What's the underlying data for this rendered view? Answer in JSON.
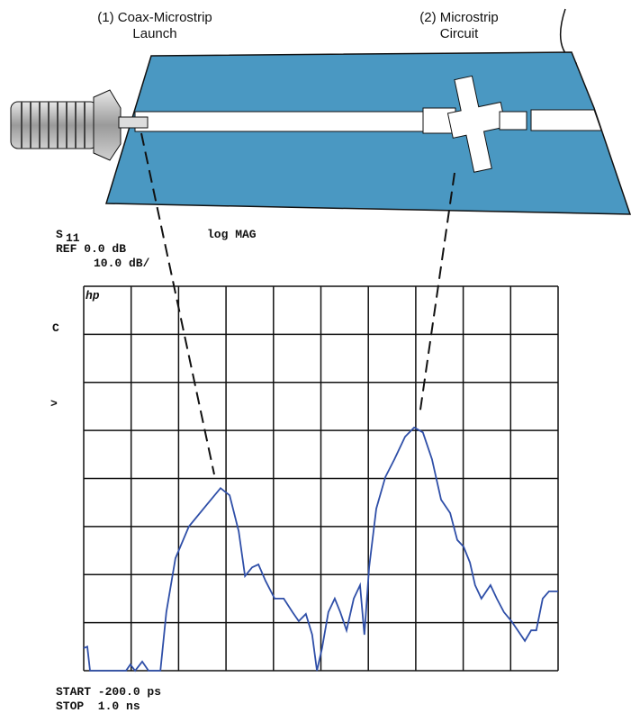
{
  "labels": {
    "launch": [
      "(1) Coax-Microstrip",
      "Launch"
    ],
    "circuit": [
      "(2) Microstrip",
      "Circuit"
    ]
  },
  "screen": {
    "s_param": "S",
    "s_param_sub": "11",
    "format": "log MAG",
    "ref": "REF 0.0 dB",
    "scale": "10.0 dB/",
    "logo": "hp",
    "marker_top": "C",
    "marker_ref": ">",
    "start": "START -200.0 ps",
    "stop": "STOP  1.0 ns"
  },
  "trace": {
    "xlim": [
      -200,
      1000
    ],
    "ylim": [
      -60,
      20
    ],
    "xticks": [
      -200,
      -80,
      40,
      160,
      280,
      400,
      520,
      640,
      760,
      880,
      1000
    ],
    "yticks": [
      -60,
      -50,
      -40,
      -30,
      -20,
      -10,
      0,
      10,
      20
    ],
    "color": "#2f4fa8",
    "x": [
      -200,
      -191,
      -184,
      -93,
      -82,
      -70,
      -52,
      -36,
      -6,
      9,
      32,
      66,
      112,
      146,
      169,
      192,
      208,
      226,
      242,
      260,
      283,
      306,
      328,
      344,
      362,
      378,
      390,
      403,
      419,
      435,
      449,
      465,
      483,
      499,
      510,
      522,
      540,
      563,
      586,
      613,
      636,
      658,
      681,
      704,
      727,
      745,
      761,
      777,
      790,
      806,
      829,
      845,
      863,
      882,
      898,
      916,
      932,
      945,
      961,
      977,
      1000
    ],
    "values": [
      -55.3,
      -55,
      -60,
      -60,
      -58.7,
      -60,
      -58.1,
      -60,
      -60,
      -47.8,
      -36.6,
      -30,
      -25.4,
      -22,
      -23.5,
      -31,
      -40.3,
      -38.5,
      -37.9,
      -41.3,
      -45,
      -45,
      -47.8,
      -49.7,
      -48.2,
      -52.5,
      -60,
      -55.3,
      -47.8,
      -45,
      -47.8,
      -51.6,
      -45,
      -42.2,
      -52.5,
      -38.5,
      -26.3,
      -19.7,
      -16,
      -11.3,
      -9.4,
      -10.4,
      -16,
      -24.4,
      -27.2,
      -32.8,
      -34.2,
      -37.5,
      -42.2,
      -45,
      -42.2,
      -45,
      -47.8,
      -49.7,
      -51.6,
      -53.8,
      -51.6,
      -51.6,
      -45,
      -43.5,
      -43.5
    ]
  }
}
